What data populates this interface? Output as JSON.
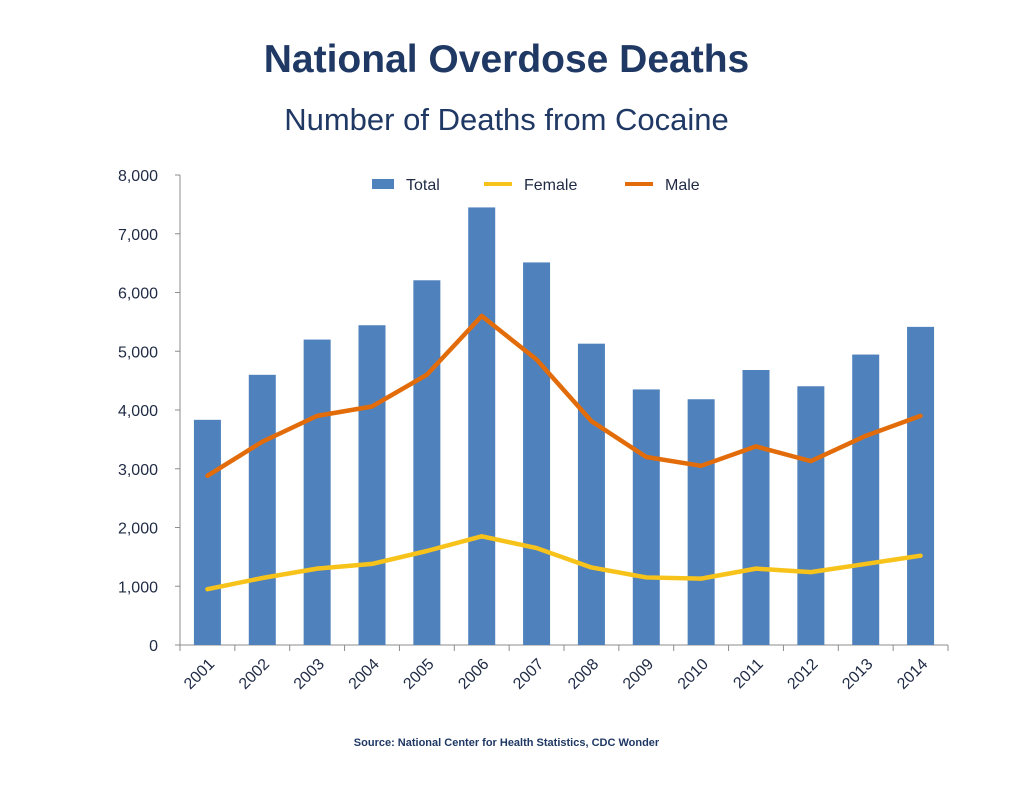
{
  "title": "National Overdose Deaths",
  "subtitle": "Number of Deaths from Cocaine",
  "source": "Source: National Center for Health Statistics, CDC Wonder",
  "colors": {
    "total": "#4f81bd",
    "female": "#f7c31a",
    "male": "#e36c0a"
  },
  "chart_data": {
    "type": "bar",
    "categories": [
      "2001",
      "2002",
      "2003",
      "2004",
      "2005",
      "2006",
      "2007",
      "2008",
      "2009",
      "2010",
      "2011",
      "2012",
      "2013",
      "2014"
    ],
    "ylim": [
      0,
      8000
    ],
    "yticks": [
      0,
      1000,
      2000,
      3000,
      4000,
      5000,
      6000,
      7000,
      8000
    ],
    "ytick_labels": [
      "0",
      "1,000",
      "2,000",
      "3,000",
      "4,000",
      "5,000",
      "6,000",
      "7,000",
      "8,000"
    ],
    "grid": false,
    "legend_position": "top",
    "series": [
      {
        "name": "Total",
        "type": "bar",
        "values": [
          3833,
          4599,
          5199,
          5443,
          6208,
          7448,
          6512,
          5129,
          4350,
          4183,
          4681,
          4404,
          4944,
          5415
        ]
      },
      {
        "name": "Female",
        "type": "line",
        "values": [
          950,
          1140,
          1300,
          1380,
          1600,
          1850,
          1650,
          1320,
          1150,
          1130,
          1300,
          1240,
          1380,
          1520
        ]
      },
      {
        "name": "Male",
        "type": "line",
        "values": [
          2880,
          3460,
          3900,
          4060,
          4600,
          5600,
          4860,
          3810,
          3200,
          3050,
          3380,
          3130,
          3560,
          3900
        ]
      }
    ]
  }
}
